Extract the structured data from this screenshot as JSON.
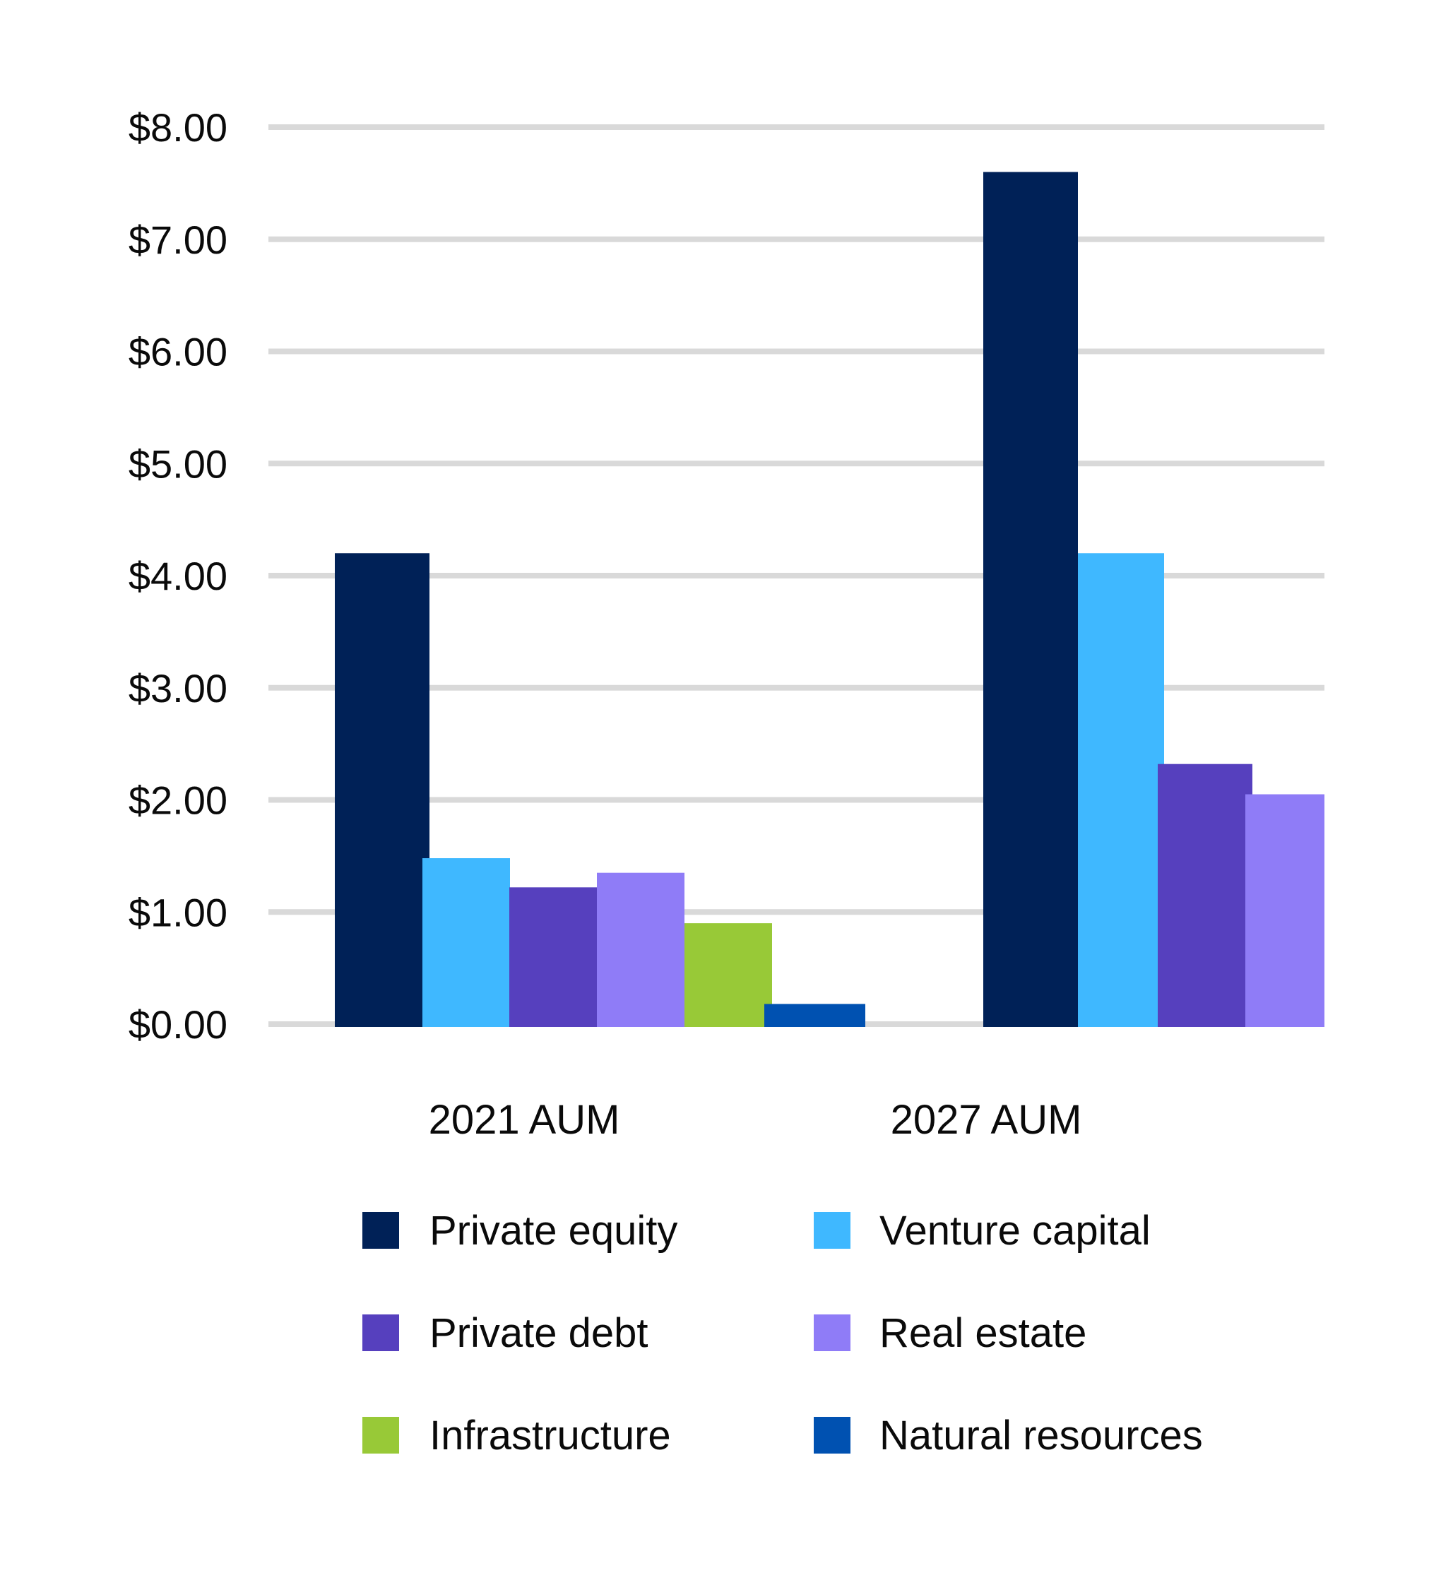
{
  "chart_data": {
    "type": "bar",
    "title": "",
    "xlabel": "",
    "ylabel": "",
    "ylim": [
      0,
      8
    ],
    "grid": true,
    "legend_position": "bottom",
    "yticks": [
      "$0.00",
      "$1.00",
      "$2.00",
      "$3.00",
      "$4.00",
      "$5.00",
      "$6.00",
      "$7.00",
      "$8.00"
    ],
    "categories": [
      "2021 AUM",
      "2027 AUM"
    ],
    "series": [
      {
        "name": "Private equity",
        "color": "#002157",
        "values": [
          4.2,
          7.6
        ]
      },
      {
        "name": "Venture capital",
        "color": "#3FB8FF",
        "values": [
          1.48,
          4.2
        ]
      },
      {
        "name": "Private debt",
        "color": "#5640BE",
        "values": [
          1.22,
          2.32
        ]
      },
      {
        "name": "Real estate",
        "color": "#8F7CF7",
        "values": [
          1.35,
          2.05
        ]
      },
      {
        "name": "Infrastructure",
        "color": "#98C937",
        "values": [
          0.9,
          null
        ]
      },
      {
        "name": "Natural resources",
        "color": "#0051B1",
        "values": [
          0.18,
          null
        ]
      }
    ]
  }
}
